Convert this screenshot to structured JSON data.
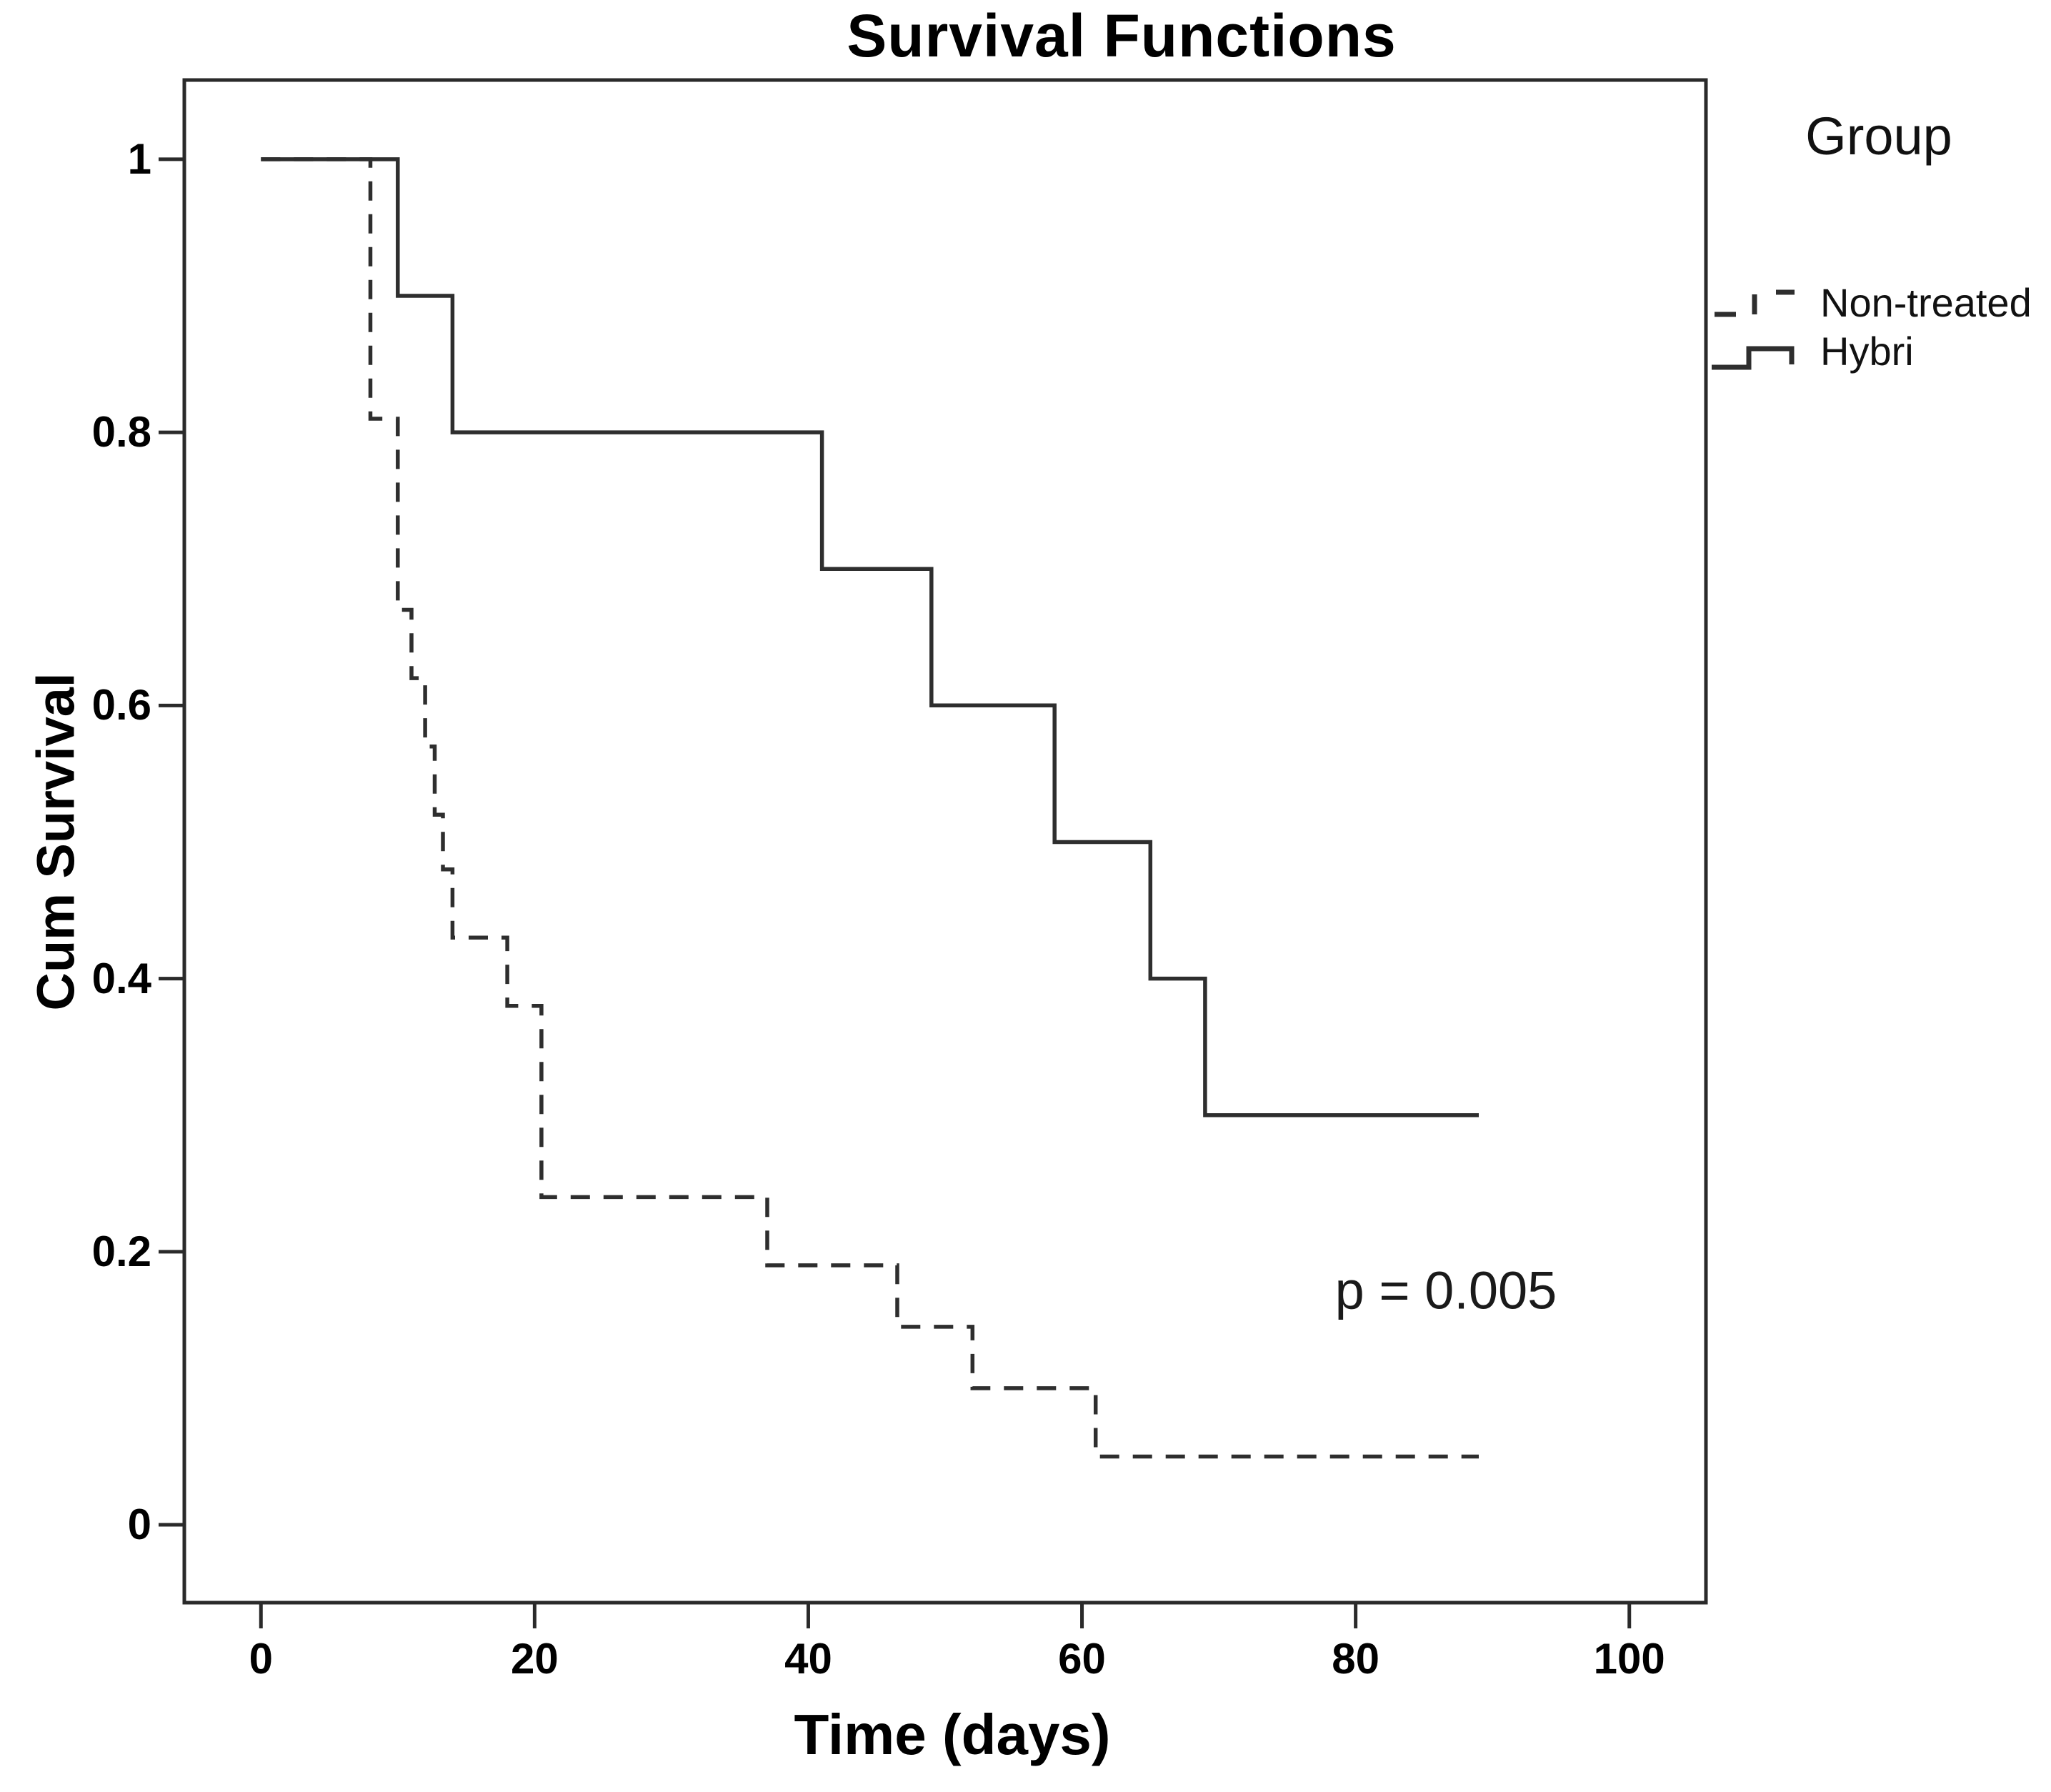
{
  "title": "Survival Functions",
  "axes": {
    "x": {
      "label": "Time (days)",
      "ticks": [
        "0",
        "20",
        "40",
        "60",
        "80",
        "100"
      ],
      "tick_values": [
        0,
        20,
        40,
        60,
        80,
        100
      ],
      "range": [
        -5.6,
        105.6
      ]
    },
    "y": {
      "label": "Cum Survival",
      "ticks": [
        "1",
        "0.8",
        "0.6",
        "0.4",
        "0.2",
        "0"
      ],
      "tick_values": [
        1,
        0.8,
        0.6,
        0.4,
        0.2,
        0
      ],
      "range": [
        -0.057,
        1.058
      ]
    }
  },
  "legend": {
    "title": "Group",
    "items": [
      {
        "label": "Non-treated",
        "line_style": "dashed"
      },
      {
        "label": "Hybri",
        "line_style": "solid"
      }
    ]
  },
  "annotation": {
    "p_value": "p = 0.005"
  },
  "colors": {
    "line": "#2e2e2e",
    "border": "#2a2a2a",
    "text": "#000000",
    "background": "#ffffff"
  },
  "chart_data": {
    "type": "line",
    "subtype": "kaplan_meier_step",
    "title": "Survival Functions",
    "xlabel": "Time (days)",
    "ylabel": "Cum Survival",
    "xlim": [
      -5.6,
      105.6
    ],
    "ylim": [
      -0.057,
      1.058
    ],
    "grid": false,
    "legend_position": "top-right-outside",
    "series": [
      {
        "name": "Non-treated",
        "style": "dashed",
        "points": [
          [
            0,
            1.0
          ],
          [
            8,
            1.0
          ],
          [
            8,
            0.81
          ],
          [
            10,
            0.81
          ],
          [
            10,
            0.67
          ],
          [
            11,
            0.67
          ],
          [
            11,
            0.62
          ],
          [
            12,
            0.62
          ],
          [
            12,
            0.57
          ],
          [
            12.7,
            0.57
          ],
          [
            12.7,
            0.52
          ],
          [
            13.3,
            0.52
          ],
          [
            13.3,
            0.48
          ],
          [
            14,
            0.48
          ],
          [
            14,
            0.43
          ],
          [
            18,
            0.43
          ],
          [
            18,
            0.38
          ],
          [
            20.5,
            0.38
          ],
          [
            20.5,
            0.24
          ],
          [
            37,
            0.24
          ],
          [
            37,
            0.19
          ],
          [
            46.5,
            0.19
          ],
          [
            46.5,
            0.145
          ],
          [
            52,
            0.145
          ],
          [
            52,
            0.1
          ],
          [
            61,
            0.1
          ],
          [
            61,
            0.05
          ],
          [
            89,
            0.05
          ]
        ]
      },
      {
        "name": "Hybri",
        "style": "solid",
        "points": [
          [
            0,
            1.0
          ],
          [
            10,
            1.0
          ],
          [
            10,
            0.9
          ],
          [
            14,
            0.9
          ],
          [
            14,
            0.8
          ],
          [
            41,
            0.8
          ],
          [
            41,
            0.7
          ],
          [
            49,
            0.7
          ],
          [
            49,
            0.6
          ],
          [
            58,
            0.6
          ],
          [
            58,
            0.5
          ],
          [
            65,
            0.5
          ],
          [
            65,
            0.4
          ],
          [
            69,
            0.4
          ],
          [
            69,
            0.3
          ],
          [
            89,
            0.3
          ]
        ]
      }
    ]
  }
}
